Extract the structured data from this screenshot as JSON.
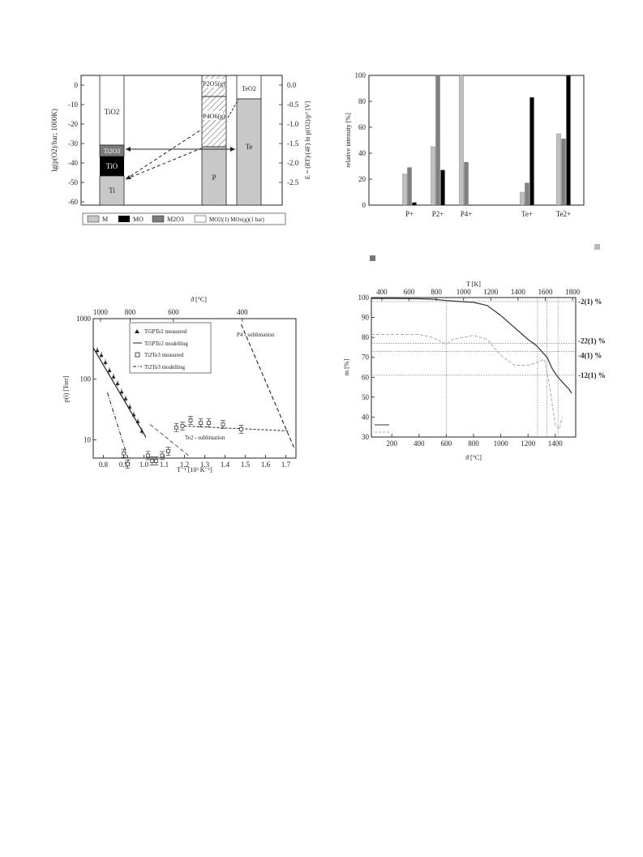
{
  "figures": {
    "ellingham": {
      "ylabel_left": "lg(p(O2)/bar; 1000K)",
      "ylabel_right": "E = (RT)/(4F) ln p(O2)/p° [V]",
      "left_ticks": [
        "0",
        "-10",
        "-20",
        "-30",
        "-40",
        "-50",
        "-60"
      ],
      "right_ticks": [
        "0.0",
        "-0.5",
        "-1.0",
        "-1.5",
        "-2.0",
        "-2.5"
      ],
      "columns": {
        "ti": {
          "labels": [
            "TiO2",
            "Ti2O3",
            "TiO",
            "Ti"
          ]
        },
        "p": {
          "labels": [
            "P2O5(g)",
            "P4O6(g)",
            "P"
          ]
        },
        "te": {
          "labels": [
            "TeO2",
            "Te"
          ]
        }
      },
      "legend": [
        "M",
        "MO",
        "M2O3",
        "MO2|(1) MOx(g)(1 bar)"
      ],
      "colors": {
        "M": "#c8c8c8",
        "MO": "#000000",
        "M2O3": "#7a7a7a",
        "MO2": "#ffffff"
      }
    },
    "intensity": {
      "chart_data": {
        "type": "bar",
        "ylabel": "relative intensity [%]",
        "categories": [
          "P+",
          "P2+",
          "P4+",
          "Te+",
          "Te2+"
        ],
        "ylim": [
          0,
          100
        ],
        "series": [
          {
            "values": [
              24,
              45,
              100,
              10,
              55
            ],
            "color": "#c0c0c0"
          },
          {
            "values": [
              29,
              100,
              33,
              17,
              51
            ],
            "color": "#808080"
          },
          {
            "values": [
              2,
              27,
              0,
              83,
              100
            ],
            "color": "#000000"
          }
        ]
      },
      "ticks": [
        "0",
        "20",
        "40",
        "60",
        "80",
        "100"
      ],
      "cat_labels": [
        "P+",
        "P2+",
        "P4+",
        "Te+",
        "Te2+"
      ]
    },
    "vapor": {
      "chart_data": {
        "type": "scatter",
        "xlabel": "T⁻¹ [10³ K⁻¹]",
        "ylabel": "p(i) [Torr]",
        "top_xlabel": "ϑ [°C]",
        "ylim": [
          5,
          1000
        ],
        "xlim": [
          0.75,
          1.75
        ],
        "series": [
          {
            "name": "Ti5PTe2 measured",
            "x": [
              0.77,
              0.79,
              0.81,
              0.83,
              0.85,
              0.87,
              0.89,
              0.91,
              0.93,
              0.95,
              0.97,
              0.99
            ],
            "y": [
              300,
              250,
              190,
              140,
              110,
              85,
              62,
              48,
              35,
              26,
              20,
              14
            ]
          },
          {
            "name": "Ti5PTe2 modelling",
            "x": [
              0.75,
              1.01
            ],
            "y": [
              330,
              11
            ]
          },
          {
            "name": "Ti2Te3 measured",
            "x": [
              0.9,
              0.92,
              1.02,
              1.04,
              1.06,
              1.09,
              1.12,
              1.16,
              1.19,
              1.23,
              1.28,
              1.32,
              1.39,
              1.48
            ],
            "y": [
              6,
              4,
              5.5,
              4.5,
              4.5,
              5.5,
              6.5,
              16,
              17,
              21,
              19,
              19,
              18,
              15
            ]
          },
          {
            "name": "Ti2Te3 modelling",
            "x": [
              0.82,
              0.93
            ],
            "y": [
              60,
              4
            ]
          }
        ]
      },
      "ticks_x": [
        "0.8",
        "0.9",
        "1.0",
        "1.1",
        "1.2",
        "1.3",
        "1.4",
        "1.5",
        "1.6",
        "1.7"
      ],
      "ticks_y": [
        "10",
        "100",
        "1000"
      ],
      "ticks_top": [
        "1000",
        "800",
        "600",
        "400"
      ],
      "legend": [
        "Ti5PTe2 measured",
        "Ti5PTe2 modelling",
        "Ti2Te3 measured",
        "Ti2Te3 modelling"
      ],
      "annotations": {
        "p4": "P4 - sublimation",
        "te2": "Te2 - sublimation"
      }
    },
    "tga": {
      "chart_data": {
        "type": "line",
        "xlabel": "ϑ [°C]",
        "ylabel": "m [%]",
        "top_xlabel": "T [K]",
        "xlim": [
          50,
          1550
        ],
        "ylim": [
          30,
          100
        ],
        "series": [
          {
            "x": [
              50,
              200,
              400,
              500,
              600,
              700,
              800,
              900,
              1000,
              1100,
              1200,
              1260,
              1300,
              1340,
              1380,
              1420,
              1460,
              1500,
              1520
            ],
            "y": [
              99.5,
              99.5,
              99.4,
              99.2,
              98.5,
              98,
              97.6,
              96,
              91,
              85,
              79,
              76,
              73,
              70,
              64,
              60,
              57,
              54,
              52
            ]
          },
          {
            "x": [
              50,
              200,
              400,
              500,
              600,
              650,
              800,
              900,
              1000,
              1100,
              1200,
              1250,
              1280,
              1320,
              1360,
              1400,
              1430,
              1450
            ],
            "y": [
              81.5,
              81.5,
              81.5,
              80,
              76.5,
              79,
              81,
              79,
              71,
              66,
              66,
              67,
              68,
              69,
              55,
              36,
              34,
              40
            ]
          }
        ]
      },
      "ticks_x": [
        "200",
        "400",
        "600",
        "800",
        "1000",
        "1200",
        "1400"
      ],
      "ticks_y": [
        "30",
        "40",
        "50",
        "60",
        "70",
        "80",
        "90",
        "100"
      ],
      "ticks_top": [
        "400",
        "600",
        "800",
        "1000",
        "1200",
        "1400",
        "1600",
        "1800"
      ],
      "right_labels": [
        "-2(1) %",
        "-22(1) %",
        "-4(1) %",
        "-12(1) %"
      ]
    }
  }
}
